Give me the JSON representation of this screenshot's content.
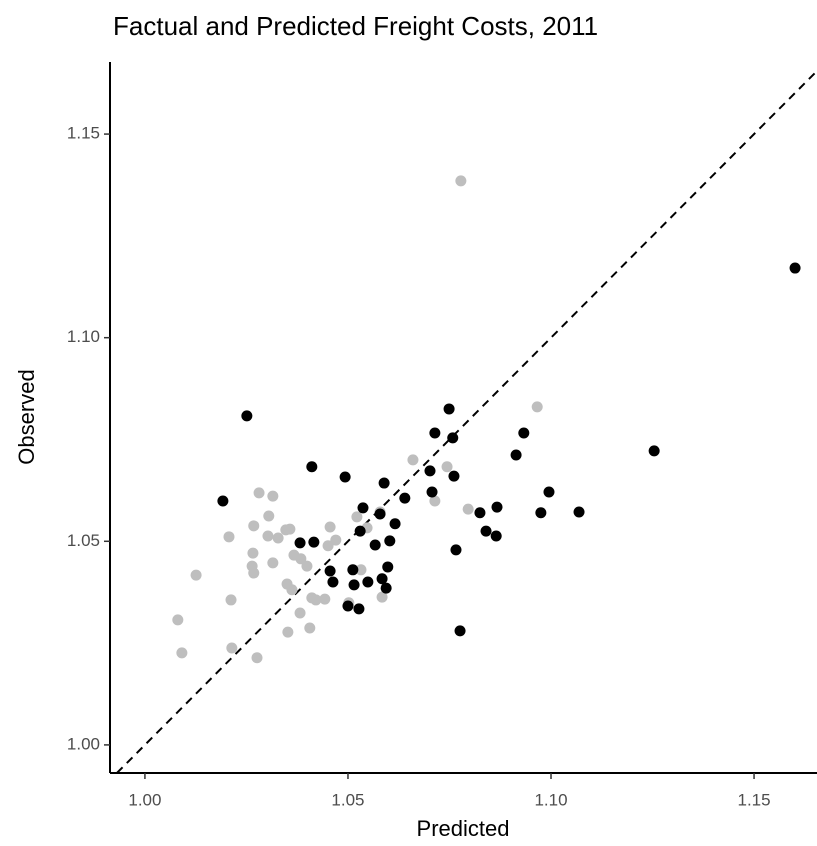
{
  "chart_data": {
    "type": "scatter",
    "title": "Factual and Predicted Freight Costs, 2011",
    "x_label": "Predicted",
    "y_label": "Observed",
    "xlim": [
      0.9914,
      1.1655
    ],
    "ylim": [
      0.9931,
      1.1677
    ],
    "xticks": [
      {
        "value": 1.0,
        "label": "1.00"
      },
      1.05,
      {
        "value": 1.1,
        "label": "1.10"
      },
      1.15
    ],
    "yticks": [
      {
        "value": 1.0,
        "label": "1.00"
      },
      1.05,
      {
        "value": 1.1,
        "label": "1.10"
      },
      1.15
    ],
    "identity_line": true,
    "series": [
      {
        "color": "#bebebe",
        "x": [
          1.0778,
          1.0966,
          1.066,
          1.0744,
          1.0714,
          1.0796,
          1.0281,
          1.0315,
          1.0207,
          1.0268,
          1.0305,
          1.0328,
          1.0303,
          1.0347,
          1.0357,
          1.0266,
          1.0264,
          1.0268,
          1.0315,
          1.0367,
          1.0384,
          1.0399,
          1.0456,
          1.047,
          1.0451,
          1.0522,
          1.0547,
          1.0579,
          1.0126,
          1.0212,
          1.035,
          1.0362,
          1.0382,
          1.0411,
          1.0421,
          1.0443,
          1.0406,
          1.0352,
          1.0502,
          1.0532,
          1.0584,
          1.0081,
          1.0091,
          1.0214,
          1.0276
        ],
        "values": [
          1.1385,
          1.083,
          1.07,
          1.0683,
          1.0599,
          1.0579,
          1.0619,
          1.0611,
          1.0511,
          1.0538,
          1.0562,
          1.0508,
          1.0513,
          1.0528,
          1.053,
          1.0471,
          1.0439,
          1.0422,
          1.0447,
          1.0466,
          1.0457,
          1.0439,
          1.0535,
          1.0503,
          1.0489,
          1.056,
          1.0533,
          1.0572,
          1.0417,
          1.0356,
          1.0395,
          1.0381,
          1.0324,
          1.0361,
          1.0356,
          1.0358,
          1.0287,
          1.0277,
          1.0349,
          1.043,
          1.0363,
          1.0307,
          1.0226,
          1.0238,
          1.0214
        ]
      },
      {
        "color": "#000000",
        "x": [
          1.0251,
          1.0192,
          1.0411,
          1.0493,
          1.0749,
          1.0714,
          1.0758,
          1.0933,
          1.0914,
          1.1254,
          1.1601,
          1.0702,
          1.0761,
          1.0707,
          1.064,
          1.0589,
          1.0616,
          1.0537,
          1.0579,
          1.0603,
          1.0567,
          1.053,
          1.0382,
          1.0416,
          1.0456,
          1.0463,
          1.0512,
          1.0549,
          1.0515,
          1.0584,
          1.0598,
          1.0594,
          1.05,
          1.0527,
          1.0825,
          1.0867,
          1.084,
          1.0865,
          1.0766,
          1.0995,
          1.0975,
          1.1069,
          1.0776
        ],
        "values": [
          1.0808,
          1.0599,
          1.0683,
          1.0658,
          1.0825,
          1.0766,
          1.0754,
          1.0766,
          1.0712,
          1.0722,
          1.1171,
          1.0673,
          1.066,
          1.0621,
          1.0606,
          1.0643,
          1.0543,
          1.0582,
          1.0567,
          1.0501,
          1.0491,
          1.0525,
          1.0496,
          1.0498,
          1.0427,
          1.04,
          1.043,
          1.04,
          1.0393,
          1.0408,
          1.0437,
          1.0385,
          1.0341,
          1.0334,
          1.057,
          1.0584,
          1.0525,
          1.0513,
          1.0479,
          1.0621,
          1.057,
          1.0572,
          1.028
        ]
      }
    ]
  }
}
